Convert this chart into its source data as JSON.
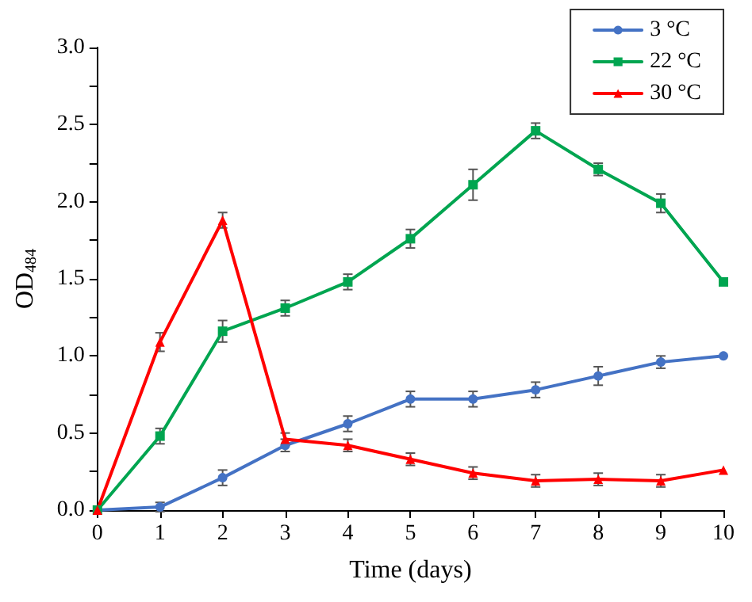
{
  "chart_data": {
    "type": "line",
    "xlabel": "Time (days)",
    "ylabel": "OD$_{484}$",
    "x": [
      0,
      1,
      2,
      3,
      4,
      5,
      6,
      7,
      8,
      9,
      10
    ],
    "xlim": [
      0,
      10
    ],
    "xticks": [
      0,
      1,
      2,
      3,
      4,
      5,
      6,
      7,
      8,
      9,
      10
    ],
    "ylim": [
      0,
      3
    ],
    "yticks": [
      {
        "value": 0,
        "label": "0.0"
      },
      {
        "value": 0.25,
        "label": null
      },
      {
        "value": 0.5,
        "label": "0.5"
      },
      {
        "value": 0.75,
        "label": null
      },
      {
        "value": 1,
        "label": "1.0"
      },
      {
        "value": 1.25,
        "label": null
      },
      {
        "value": 1.5,
        "label": "1.5"
      },
      {
        "value": 1.75,
        "label": null
      },
      {
        "value": 2,
        "label": "2.0"
      },
      {
        "value": 2.25,
        "label": null
      },
      {
        "value": 2.5,
        "label": "2.5"
      },
      {
        "value": 2.75,
        "label": null
      },
      {
        "value": 3,
        "label": "3.0"
      }
    ],
    "grid": false,
    "legend": "top right",
    "line_style": "solid",
    "series": [
      {
        "name": "3 °C",
        "color": "#4472c4",
        "marker": "circle",
        "values": [
          0,
          0.02,
          0.21,
          0.42,
          0.56,
          0.72,
          0.72,
          0.78,
          0.87,
          0.96,
          1.0
        ],
        "errors": [
          null,
          0.03,
          0.05,
          0.04,
          0.05,
          0.05,
          0.05,
          0.05,
          0.06,
          0.04,
          null
        ]
      },
      {
        "name": "22 °C",
        "color": "#00a550",
        "marker": "square",
        "values": [
          0,
          0.48,
          1.16,
          1.31,
          1.48,
          1.76,
          2.11,
          2.46,
          2.21,
          1.99,
          1.48
        ],
        "errors": [
          null,
          0.05,
          0.07,
          0.05,
          0.05,
          0.06,
          0.1,
          0.05,
          0.04,
          0.06,
          null
        ]
      },
      {
        "name": "30 °C",
        "color": "#ff0000",
        "marker": "triangle",
        "values": [
          0,
          1.09,
          1.88,
          0.46,
          0.42,
          0.33,
          0.24,
          0.19,
          0.2,
          0.19,
          0.26
        ],
        "errors": [
          null,
          0.06,
          0.05,
          0.04,
          0.04,
          0.04,
          0.04,
          0.04,
          0.04,
          0.04,
          null
        ]
      }
    ]
  }
}
